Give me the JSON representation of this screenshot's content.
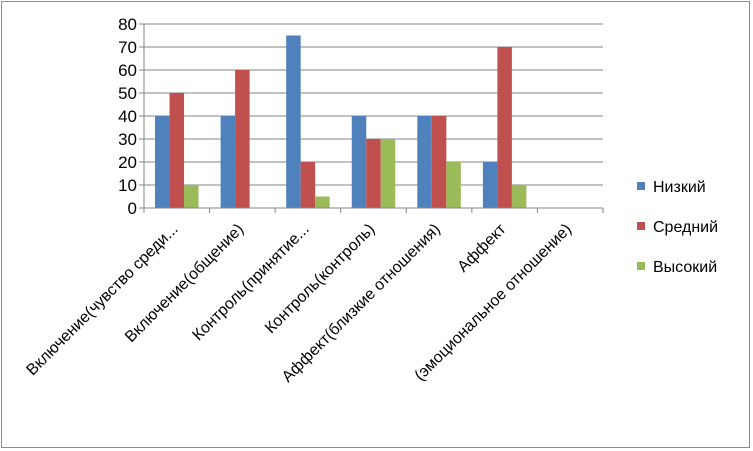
{
  "chart_data": {
    "type": "bar",
    "title": "",
    "xlabel": "",
    "ylabel": "",
    "ylim": [
      0,
      80
    ],
    "yticks": [
      0,
      10,
      20,
      30,
      40,
      50,
      60,
      70,
      80
    ],
    "grid": true,
    "legend_position": "right",
    "categories": [
      "Включение(чувство среди...",
      "Включение(общение)",
      "Контроль(принятие...",
      "Контроль(контроль)",
      "Аффект(близкие отношения)",
      "Аффект",
      "(эмоциональное отношение)"
    ],
    "series": [
      {
        "name": "Низкий",
        "color": "#4f81bd",
        "values": [
          40,
          40,
          75,
          40,
          40,
          20,
          null
        ]
      },
      {
        "name": "Средний",
        "color": "#c0504d",
        "values": [
          50,
          60,
          20,
          30,
          40,
          70,
          null
        ]
      },
      {
        "name": "Высокий",
        "color": "#9bbb59",
        "values": [
          10,
          null,
          5,
          30,
          20,
          10,
          null
        ]
      }
    ]
  }
}
